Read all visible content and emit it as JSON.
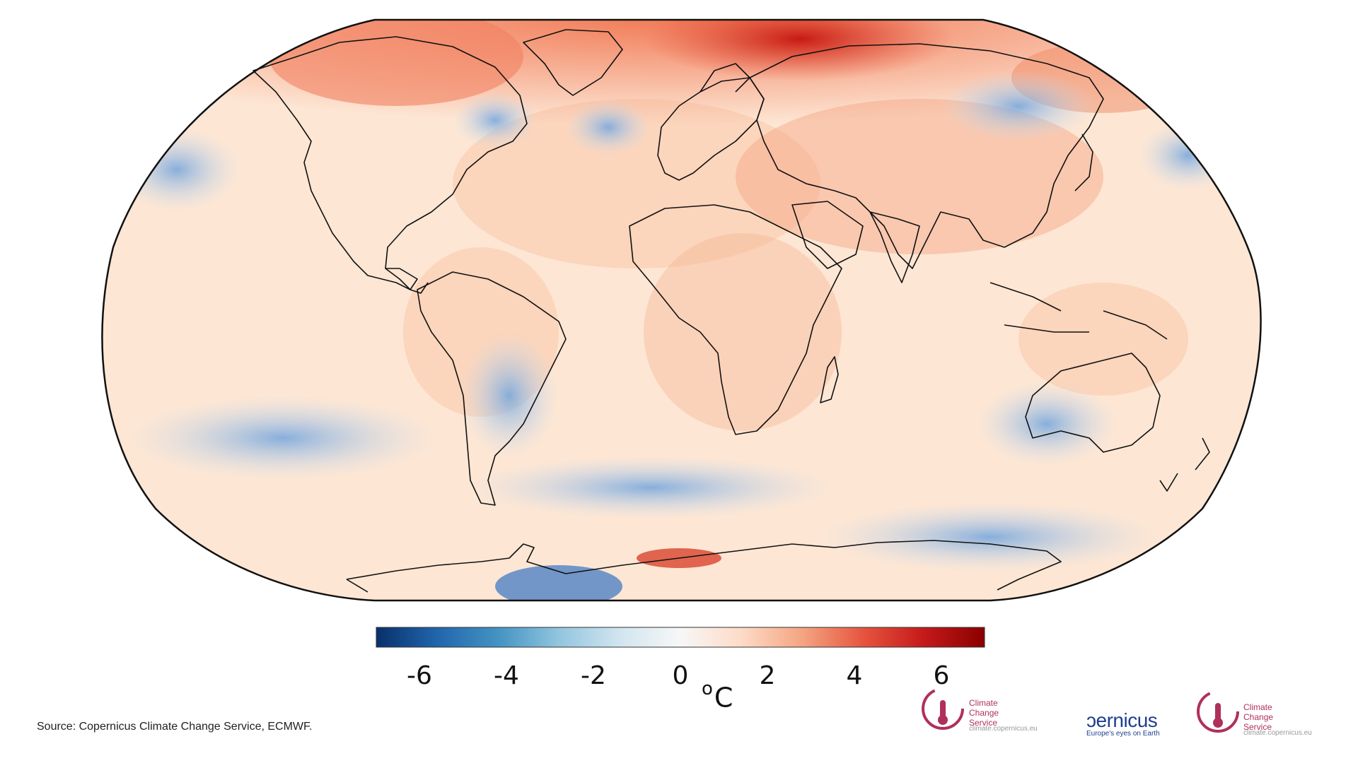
{
  "map": {
    "colorbar": {
      "colors": [
        "#08306b",
        "#2166ac",
        "#4393c3",
        "#92c5de",
        "#d1e5f0",
        "#f7f7f7",
        "#fddbc7",
        "#f4a582",
        "#e6553f",
        "#c41a1a",
        "#8b0000"
      ],
      "ticks": [
        "-6",
        "-4",
        "-2",
        "0",
        "2",
        "4",
        "6"
      ]
    },
    "unit": {
      "degree": "o",
      "letter": "C"
    },
    "colors": {
      "land_outline": "#111111",
      "ocean_base": "#fde4d0",
      "warm": "#e34a33",
      "cold": "#6f9fd8"
    }
  },
  "source": "Source: Copernicus Climate Change Service, ECMWF.",
  "logos": {
    "c3s_1": {
      "line1": "Climate",
      "line2": "Change Service",
      "url": "climate.copernicus.eu"
    },
    "copernicus": {
      "word": "ɔernicus",
      "tagline": "Europe's eyes on Earth"
    },
    "c3s_2": {
      "line1": "Climate",
      "line2": "Change Service",
      "url": "climate.copernicus.eu"
    }
  }
}
